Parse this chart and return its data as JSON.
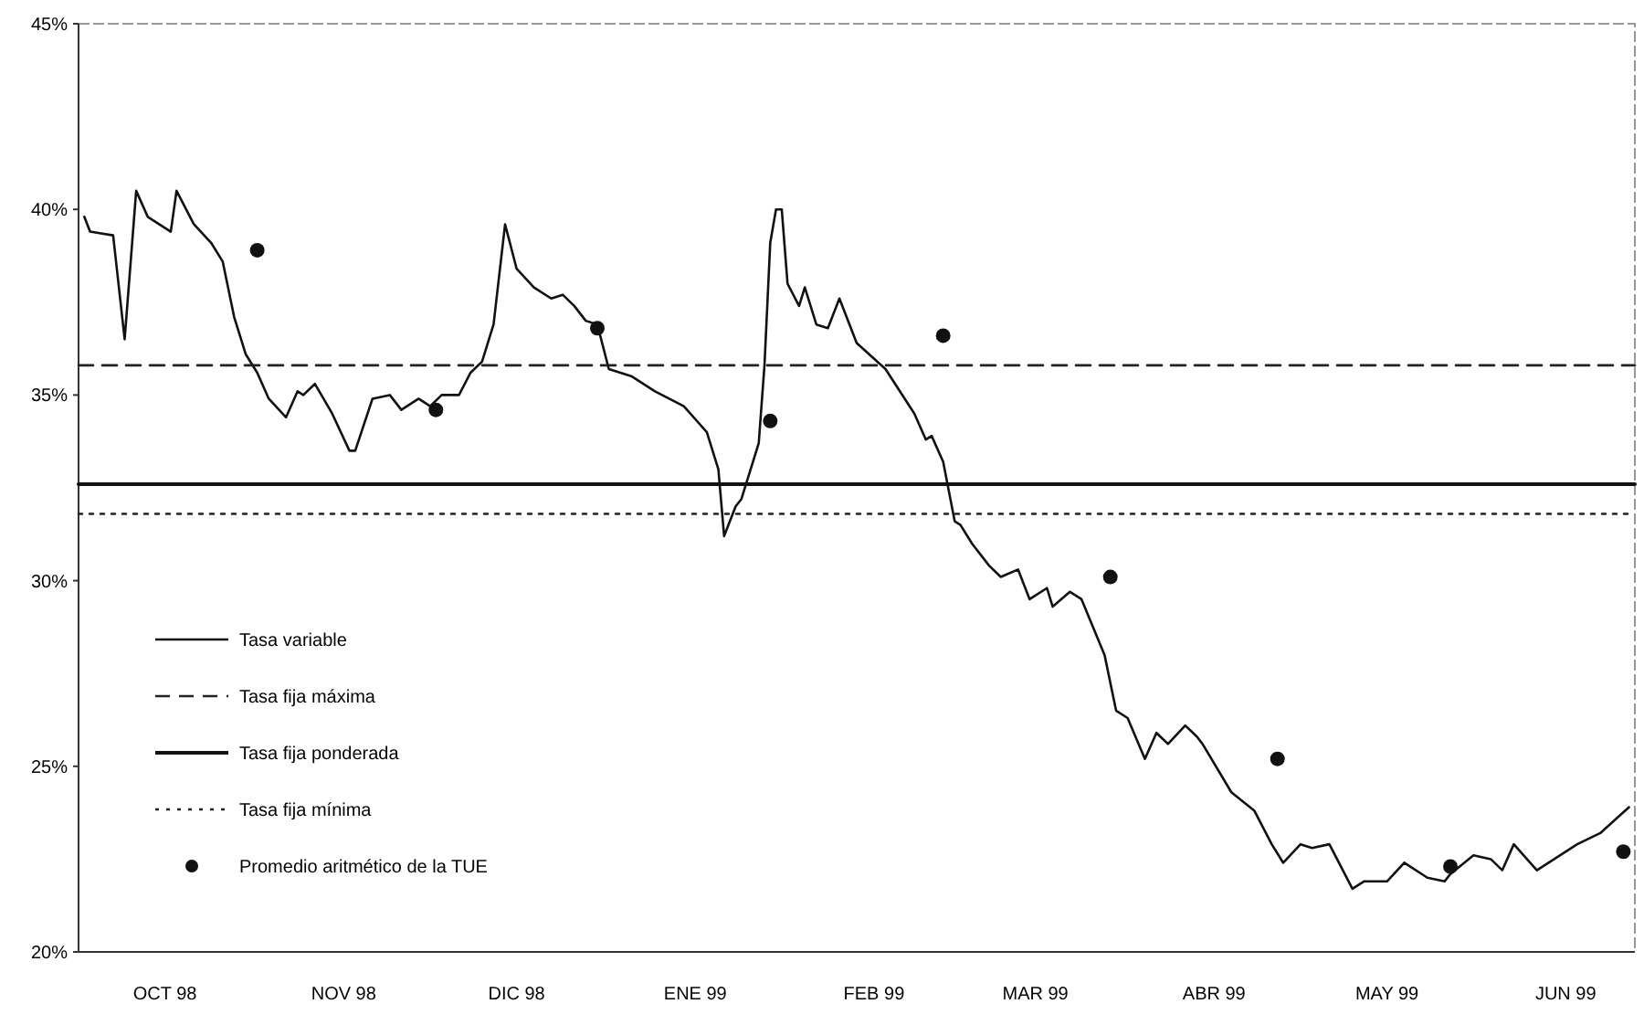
{
  "chart_data": {
    "type": "line",
    "xlim": [
      "1998-09-16",
      "1999-06-13"
    ],
    "ylim": [
      20,
      45
    ],
    "xticks": [
      {
        "value": "1998-10-01",
        "label": "OCT 98"
      },
      {
        "value": "1998-11-01",
        "label": "NOV 98"
      },
      {
        "value": "1998-12-01",
        "label": "DIC 98"
      },
      {
        "value": "1999-01-01",
        "label": "ENE 99"
      },
      {
        "value": "1999-02-01",
        "label": "FEB 99"
      },
      {
        "value": "1999-03-01",
        "label": "MAR 99"
      },
      {
        "value": "1999-04-01",
        "label": "ABR 99"
      },
      {
        "value": "1999-05-01",
        "label": "MAY 99"
      },
      {
        "value": "1999-06-01",
        "label": "JUN 99"
      }
    ],
    "yticks": [
      {
        "value": 20,
        "label": "20%"
      },
      {
        "value": 25,
        "label": "25%"
      },
      {
        "value": 30,
        "label": "30%"
      },
      {
        "value": 35,
        "label": "35%"
      },
      {
        "value": 40,
        "label": "40%"
      },
      {
        "value": 45,
        "label": "45%"
      }
    ],
    "grid": false,
    "legend": "bottom left",
    "series": [
      {
        "name": "Tasa variable",
        "type": "line",
        "color": "#111111",
        "line_style": "solid",
        "marker": "none",
        "x": [
          "1998-09-17",
          "1998-09-18",
          "1998-09-22",
          "1998-09-24",
          "1998-09-26",
          "1998-09-28",
          "1998-10-02",
          "1998-10-03",
          "1998-10-06",
          "1998-10-09",
          "1998-10-11",
          "1998-10-13",
          "1998-10-15",
          "1998-10-17",
          "1998-10-19",
          "1998-10-22",
          "1998-10-24",
          "1998-10-25",
          "1998-10-27",
          "1998-10-30",
          "1998-11-02",
          "1998-11-03",
          "1998-11-06",
          "1998-11-09",
          "1998-11-11",
          "1998-11-14",
          "1998-11-16",
          "1998-11-18",
          "1998-11-21",
          "1998-11-23",
          "1998-11-25",
          "1998-11-27",
          "1998-11-29",
          "1998-12-01",
          "1998-12-04",
          "1998-12-07",
          "1998-12-09",
          "1998-12-11",
          "1998-12-13",
          "1998-12-15",
          "1998-12-17",
          "1998-12-21",
          "1998-12-25",
          "1998-12-30",
          "1999-01-03",
          "1999-01-05",
          "1999-01-06",
          "1999-01-08",
          "1999-01-09",
          "1999-01-12",
          "1999-01-13",
          "1999-01-14",
          "1999-01-15",
          "1999-01-16",
          "1999-01-17",
          "1999-01-19",
          "1999-01-20",
          "1999-01-22",
          "1999-01-24",
          "1999-01-26",
          "1999-01-29",
          "1999-02-03",
          "1999-02-08",
          "1999-02-10",
          "1999-02-11",
          "1999-02-13",
          "1999-02-15",
          "1999-02-16",
          "1999-02-18",
          "1999-02-21",
          "1999-02-23",
          "1999-02-26",
          "1999-02-28",
          "1999-03-03",
          "1999-03-04",
          "1999-03-07",
          "1999-03-09",
          "1999-03-13",
          "1999-03-15",
          "1999-03-17",
          "1999-03-20",
          "1999-03-22",
          "1999-03-24",
          "1999-03-27",
          "1999-03-29",
          "1999-03-30",
          "1999-04-04",
          "1999-04-08",
          "1999-04-11",
          "1999-04-13",
          "1999-04-16",
          "1999-04-18",
          "1999-04-21",
          "1999-04-25",
          "1999-04-27",
          "1999-05-01",
          "1999-05-04",
          "1999-05-08",
          "1999-05-11",
          "1999-05-12",
          "1999-05-16",
          "1999-05-19",
          "1999-05-21",
          "1999-05-23",
          "1999-05-27",
          "1999-06-03",
          "1999-06-07",
          "1999-06-12"
        ],
        "values": [
          39.8,
          39.4,
          39.3,
          36.5,
          40.5,
          39.8,
          39.4,
          40.5,
          39.6,
          39.1,
          38.6,
          37.1,
          36.1,
          35.6,
          34.9,
          34.4,
          35.1,
          35.0,
          35.3,
          34.5,
          33.5,
          33.5,
          34.9,
          35.0,
          34.6,
          34.9,
          34.7,
          35.0,
          35.0,
          35.6,
          35.9,
          36.9,
          39.6,
          38.4,
          37.9,
          37.6,
          37.7,
          37.4,
          37.0,
          36.9,
          35.7,
          35.5,
          35.1,
          34.7,
          34.0,
          33.0,
          31.2,
          32.0,
          32.2,
          33.7,
          35.8,
          39.1,
          40.0,
          40.0,
          38.0,
          37.4,
          37.9,
          36.9,
          36.8,
          37.6,
          36.4,
          35.7,
          34.5,
          33.8,
          33.9,
          33.2,
          31.6,
          31.5,
          31.0,
          30.4,
          30.1,
          30.3,
          29.5,
          29.8,
          29.3,
          29.7,
          29.5,
          28.0,
          26.5,
          26.3,
          25.2,
          25.9,
          25.6,
          26.1,
          25.8,
          25.6,
          24.3,
          23.8,
          22.9,
          22.4,
          22.9,
          22.8,
          22.9,
          21.7,
          21.9,
          21.9,
          22.4,
          22.0,
          21.9,
          22.1,
          22.6,
          22.5,
          22.2,
          22.9,
          22.2,
          22.9,
          23.2,
          23.9
        ]
      },
      {
        "name": "Tasa fija máxima",
        "type": "line",
        "color": "#222222",
        "line_style": "dashed",
        "marker": "none",
        "x": [
          "1998-09-16",
          "1999-06-13"
        ],
        "values": [
          35.8,
          35.8
        ]
      },
      {
        "name": "Tasa fija ponderada",
        "type": "line",
        "color": "#111111",
        "line_style": "solid",
        "marker": "none",
        "x": [
          "1998-09-16",
          "1999-06-13"
        ],
        "values": [
          32.6,
          32.6
        ]
      },
      {
        "name": "Tasa fija mínima",
        "type": "line",
        "color": "#222222",
        "line_style": "dotted",
        "marker": "none",
        "x": [
          "1998-09-16",
          "1999-06-13"
        ],
        "values": [
          31.8,
          31.8
        ]
      },
      {
        "name": "Promedio aritmético de la TUE",
        "type": "scatter",
        "color": "#111111",
        "marker": "circle",
        "x": [
          "1998-10-17",
          "1998-11-17",
          "1998-12-15",
          "1999-01-14",
          "1999-02-13",
          "1999-03-14",
          "1999-04-12",
          "1999-05-12",
          "1999-06-11"
        ],
        "values": [
          38.9,
          34.6,
          36.8,
          34.3,
          36.6,
          30.1,
          25.2,
          22.3,
          22.7
        ]
      }
    ]
  }
}
